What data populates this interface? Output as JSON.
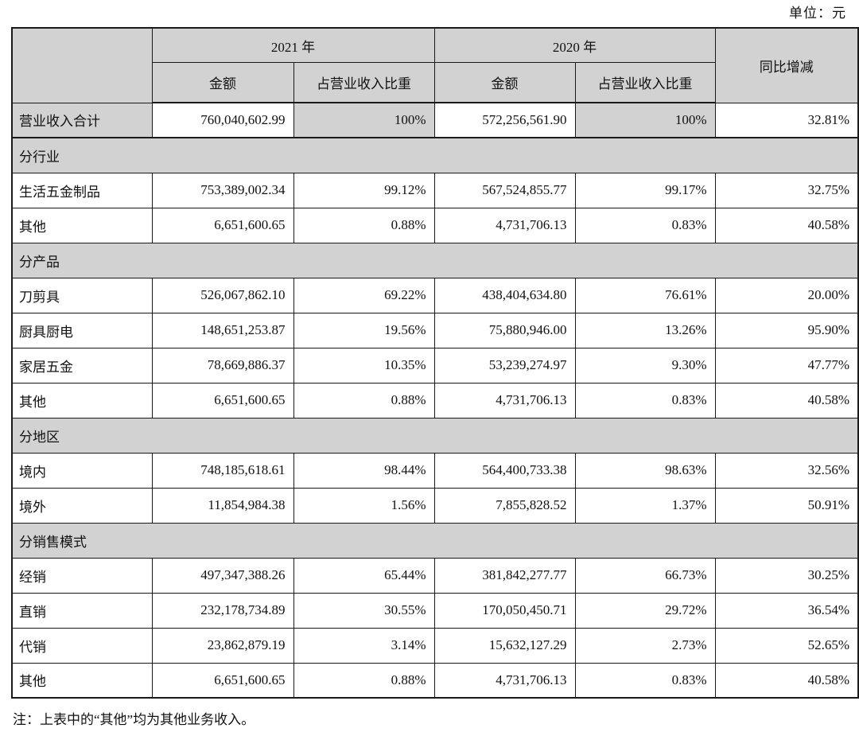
{
  "meta": {
    "unit_label": "单位：元",
    "note": "注：上表中的“其他”均为其他业务收入。"
  },
  "colors": {
    "header_fill": "#d2d2d2",
    "border": "#1a1a1a",
    "text": "#111111"
  },
  "table": {
    "year_groups": [
      "2021 年",
      "2020 年"
    ],
    "sub_headers": [
      "金额",
      "占营业收入比重",
      "金额",
      "占营业收入比重"
    ],
    "yoy_header": "同比增减",
    "rows": [
      {
        "type": "total",
        "label": "营业收入合计",
        "values": [
          "760,040,602.99",
          "100%",
          "572,256,561.90",
          "100%",
          "32.81%"
        ]
      },
      {
        "type": "section",
        "label": "分行业"
      },
      {
        "type": "data",
        "label": "生活五金制品",
        "values": [
          "753,389,002.34",
          "99.12%",
          "567,524,855.77",
          "99.17%",
          "32.75%"
        ]
      },
      {
        "type": "data",
        "label": "其他",
        "values": [
          "6,651,600.65",
          "0.88%",
          "4,731,706.13",
          "0.83%",
          "40.58%"
        ]
      },
      {
        "type": "section",
        "label": "分产品"
      },
      {
        "type": "data",
        "label": "刀剪具",
        "values": [
          "526,067,862.10",
          "69.22%",
          "438,404,634.80",
          "76.61%",
          "20.00%"
        ]
      },
      {
        "type": "data",
        "label": "厨具厨电",
        "values": [
          "148,651,253.87",
          "19.56%",
          "75,880,946.00",
          "13.26%",
          "95.90%"
        ]
      },
      {
        "type": "data",
        "label": "家居五金",
        "values": [
          "78,669,886.37",
          "10.35%",
          "53,239,274.97",
          "9.30%",
          "47.77%"
        ]
      },
      {
        "type": "data",
        "label": "其他",
        "values": [
          "6,651,600.65",
          "0.88%",
          "4,731,706.13",
          "0.83%",
          "40.58%"
        ]
      },
      {
        "type": "section",
        "label": "分地区"
      },
      {
        "type": "data",
        "label": "境内",
        "values": [
          "748,185,618.61",
          "98.44%",
          "564,400,733.38",
          "98.63%",
          "32.56%"
        ]
      },
      {
        "type": "data",
        "label": "境外",
        "values": [
          "11,854,984.38",
          "1.56%",
          "7,855,828.52",
          "1.37%",
          "50.91%"
        ]
      },
      {
        "type": "section",
        "label": "分销售模式"
      },
      {
        "type": "data",
        "label": "经销",
        "values": [
          "497,347,388.26",
          "65.44%",
          "381,842,277.77",
          "66.73%",
          "30.25%"
        ]
      },
      {
        "type": "data",
        "label": "直销",
        "values": [
          "232,178,734.89",
          "30.55%",
          "170,050,450.71",
          "29.72%",
          "36.54%"
        ]
      },
      {
        "type": "data",
        "label": "代销",
        "values": [
          "23,862,879.19",
          "3.14%",
          "15,632,127.29",
          "2.73%",
          "52.65%"
        ]
      },
      {
        "type": "data",
        "label": "其他",
        "values": [
          "6,651,600.65",
          "0.88%",
          "4,731,706.13",
          "0.83%",
          "40.58%"
        ]
      }
    ]
  }
}
